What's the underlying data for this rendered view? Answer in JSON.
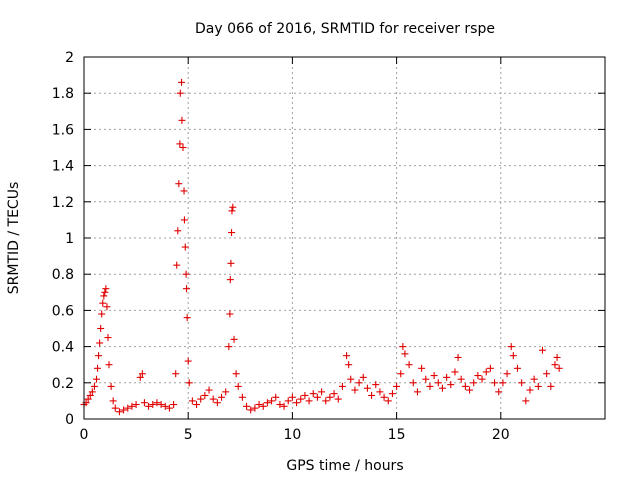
{
  "chart_data": {
    "type": "scatter",
    "title": "Day 066 of 2016, SRMTID for receiver rspe",
    "xlabel": "GPS time / hours",
    "ylabel": "SRMTID / TECUs",
    "xlim": [
      0,
      25
    ],
    "ylim": [
      0,
      2
    ],
    "xticks": [
      0,
      5,
      10,
      15,
      20
    ],
    "xtick_labels": [
      "0",
      "5",
      "10",
      "15",
      "20"
    ],
    "yticks": [
      0,
      0.2,
      0.4,
      0.6,
      0.8,
      1,
      1.2,
      1.4,
      1.6,
      1.8,
      2
    ],
    "ytick_labels": [
      "0",
      "0.2",
      "0.4",
      "0.6",
      "0.8",
      "1",
      "1.2",
      "1.4",
      "1.6",
      "1.8",
      "2"
    ],
    "grid": true,
    "marker": "+",
    "marker_color": "#e00000",
    "series": [
      {
        "name": "SRMTID",
        "points": [
          [
            0.0,
            0.08
          ],
          [
            0.1,
            0.09
          ],
          [
            0.2,
            0.11
          ],
          [
            0.3,
            0.13
          ],
          [
            0.4,
            0.15
          ],
          [
            0.5,
            0.18
          ],
          [
            0.6,
            0.22
          ],
          [
            0.65,
            0.28
          ],
          [
            0.7,
            0.35
          ],
          [
            0.75,
            0.42
          ],
          [
            0.8,
            0.5
          ],
          [
            0.85,
            0.58
          ],
          [
            0.9,
            0.64
          ],
          [
            0.95,
            0.68
          ],
          [
            1.0,
            0.7
          ],
          [
            1.05,
            0.72
          ],
          [
            1.1,
            0.62
          ],
          [
            1.15,
            0.45
          ],
          [
            1.2,
            0.3
          ],
          [
            1.3,
            0.18
          ],
          [
            1.4,
            0.1
          ],
          [
            1.5,
            0.06
          ],
          [
            1.7,
            0.04
          ],
          [
            1.9,
            0.05
          ],
          [
            2.1,
            0.06
          ],
          [
            2.3,
            0.07
          ],
          [
            2.5,
            0.08
          ],
          [
            2.7,
            0.23
          ],
          [
            2.8,
            0.25
          ],
          [
            2.9,
            0.09
          ],
          [
            3.1,
            0.07
          ],
          [
            3.3,
            0.08
          ],
          [
            3.5,
            0.09
          ],
          [
            3.7,
            0.08
          ],
          [
            3.9,
            0.07
          ],
          [
            4.1,
            0.06
          ],
          [
            4.3,
            0.08
          ],
          [
            4.4,
            0.25
          ],
          [
            4.45,
            0.85
          ],
          [
            4.5,
            1.04
          ],
          [
            4.55,
            1.3
          ],
          [
            4.6,
            1.52
          ],
          [
            4.62,
            1.8
          ],
          [
            4.68,
            1.86
          ],
          [
            4.7,
            1.65
          ],
          [
            4.75,
            1.5
          ],
          [
            4.8,
            1.26
          ],
          [
            4.82,
            1.1
          ],
          [
            4.86,
            0.95
          ],
          [
            4.9,
            0.8
          ],
          [
            4.92,
            0.72
          ],
          [
            4.95,
            0.56
          ],
          [
            5.0,
            0.32
          ],
          [
            5.05,
            0.2
          ],
          [
            5.2,
            0.1
          ],
          [
            5.4,
            0.08
          ],
          [
            5.6,
            0.11
          ],
          [
            5.8,
            0.13
          ],
          [
            6.0,
            0.16
          ],
          [
            6.2,
            0.11
          ],
          [
            6.4,
            0.09
          ],
          [
            6.6,
            0.12
          ],
          [
            6.8,
            0.15
          ],
          [
            6.95,
            0.4
          ],
          [
            7.0,
            0.58
          ],
          [
            7.02,
            0.77
          ],
          [
            7.05,
            0.86
          ],
          [
            7.08,
            1.03
          ],
          [
            7.1,
            1.15
          ],
          [
            7.14,
            1.17
          ],
          [
            7.2,
            0.44
          ],
          [
            7.3,
            0.25
          ],
          [
            7.4,
            0.18
          ],
          [
            7.6,
            0.12
          ],
          [
            7.8,
            0.07
          ],
          [
            8.0,
            0.05
          ],
          [
            8.2,
            0.06
          ],
          [
            8.4,
            0.08
          ],
          [
            8.6,
            0.07
          ],
          [
            8.8,
            0.09
          ],
          [
            9.0,
            0.1
          ],
          [
            9.2,
            0.12
          ],
          [
            9.4,
            0.08
          ],
          [
            9.6,
            0.07
          ],
          [
            9.8,
            0.1
          ],
          [
            10.0,
            0.12
          ],
          [
            10.2,
            0.09
          ],
          [
            10.4,
            0.11
          ],
          [
            10.6,
            0.13
          ],
          [
            10.8,
            0.1
          ],
          [
            11.0,
            0.14
          ],
          [
            11.2,
            0.12
          ],
          [
            11.4,
            0.15
          ],
          [
            11.6,
            0.1
          ],
          [
            11.8,
            0.12
          ],
          [
            12.0,
            0.14
          ],
          [
            12.2,
            0.11
          ],
          [
            12.4,
            0.18
          ],
          [
            12.6,
            0.35
          ],
          [
            12.7,
            0.3
          ],
          [
            12.8,
            0.22
          ],
          [
            13.0,
            0.16
          ],
          [
            13.2,
            0.2
          ],
          [
            13.4,
            0.23
          ],
          [
            13.6,
            0.17
          ],
          [
            13.8,
            0.13
          ],
          [
            14.0,
            0.19
          ],
          [
            14.2,
            0.15
          ],
          [
            14.4,
            0.12
          ],
          [
            14.6,
            0.1
          ],
          [
            14.8,
            0.14
          ],
          [
            15.0,
            0.18
          ],
          [
            15.2,
            0.25
          ],
          [
            15.3,
            0.4
          ],
          [
            15.4,
            0.36
          ],
          [
            15.6,
            0.3
          ],
          [
            15.8,
            0.2
          ],
          [
            16.0,
            0.15
          ],
          [
            16.2,
            0.28
          ],
          [
            16.4,
            0.22
          ],
          [
            16.6,
            0.18
          ],
          [
            16.8,
            0.24
          ],
          [
            17.0,
            0.2
          ],
          [
            17.2,
            0.17
          ],
          [
            17.4,
            0.23
          ],
          [
            17.6,
            0.19
          ],
          [
            17.8,
            0.26
          ],
          [
            17.95,
            0.34
          ],
          [
            18.1,
            0.22
          ],
          [
            18.3,
            0.18
          ],
          [
            18.5,
            0.16
          ],
          [
            18.7,
            0.2
          ],
          [
            18.9,
            0.24
          ],
          [
            19.1,
            0.22
          ],
          [
            19.3,
            0.26
          ],
          [
            19.5,
            0.28
          ],
          [
            19.7,
            0.2
          ],
          [
            19.9,
            0.15
          ],
          [
            20.1,
            0.2
          ],
          [
            20.3,
            0.25
          ],
          [
            20.5,
            0.4
          ],
          [
            20.6,
            0.35
          ],
          [
            20.8,
            0.28
          ],
          [
            21.0,
            0.2
          ],
          [
            21.2,
            0.1
          ],
          [
            21.4,
            0.16
          ],
          [
            21.6,
            0.22
          ],
          [
            21.8,
            0.18
          ],
          [
            22.0,
            0.38
          ],
          [
            22.2,
            0.25
          ],
          [
            22.4,
            0.18
          ],
          [
            22.6,
            0.3
          ],
          [
            22.7,
            0.34
          ],
          [
            22.8,
            0.28
          ]
        ]
      }
    ]
  }
}
